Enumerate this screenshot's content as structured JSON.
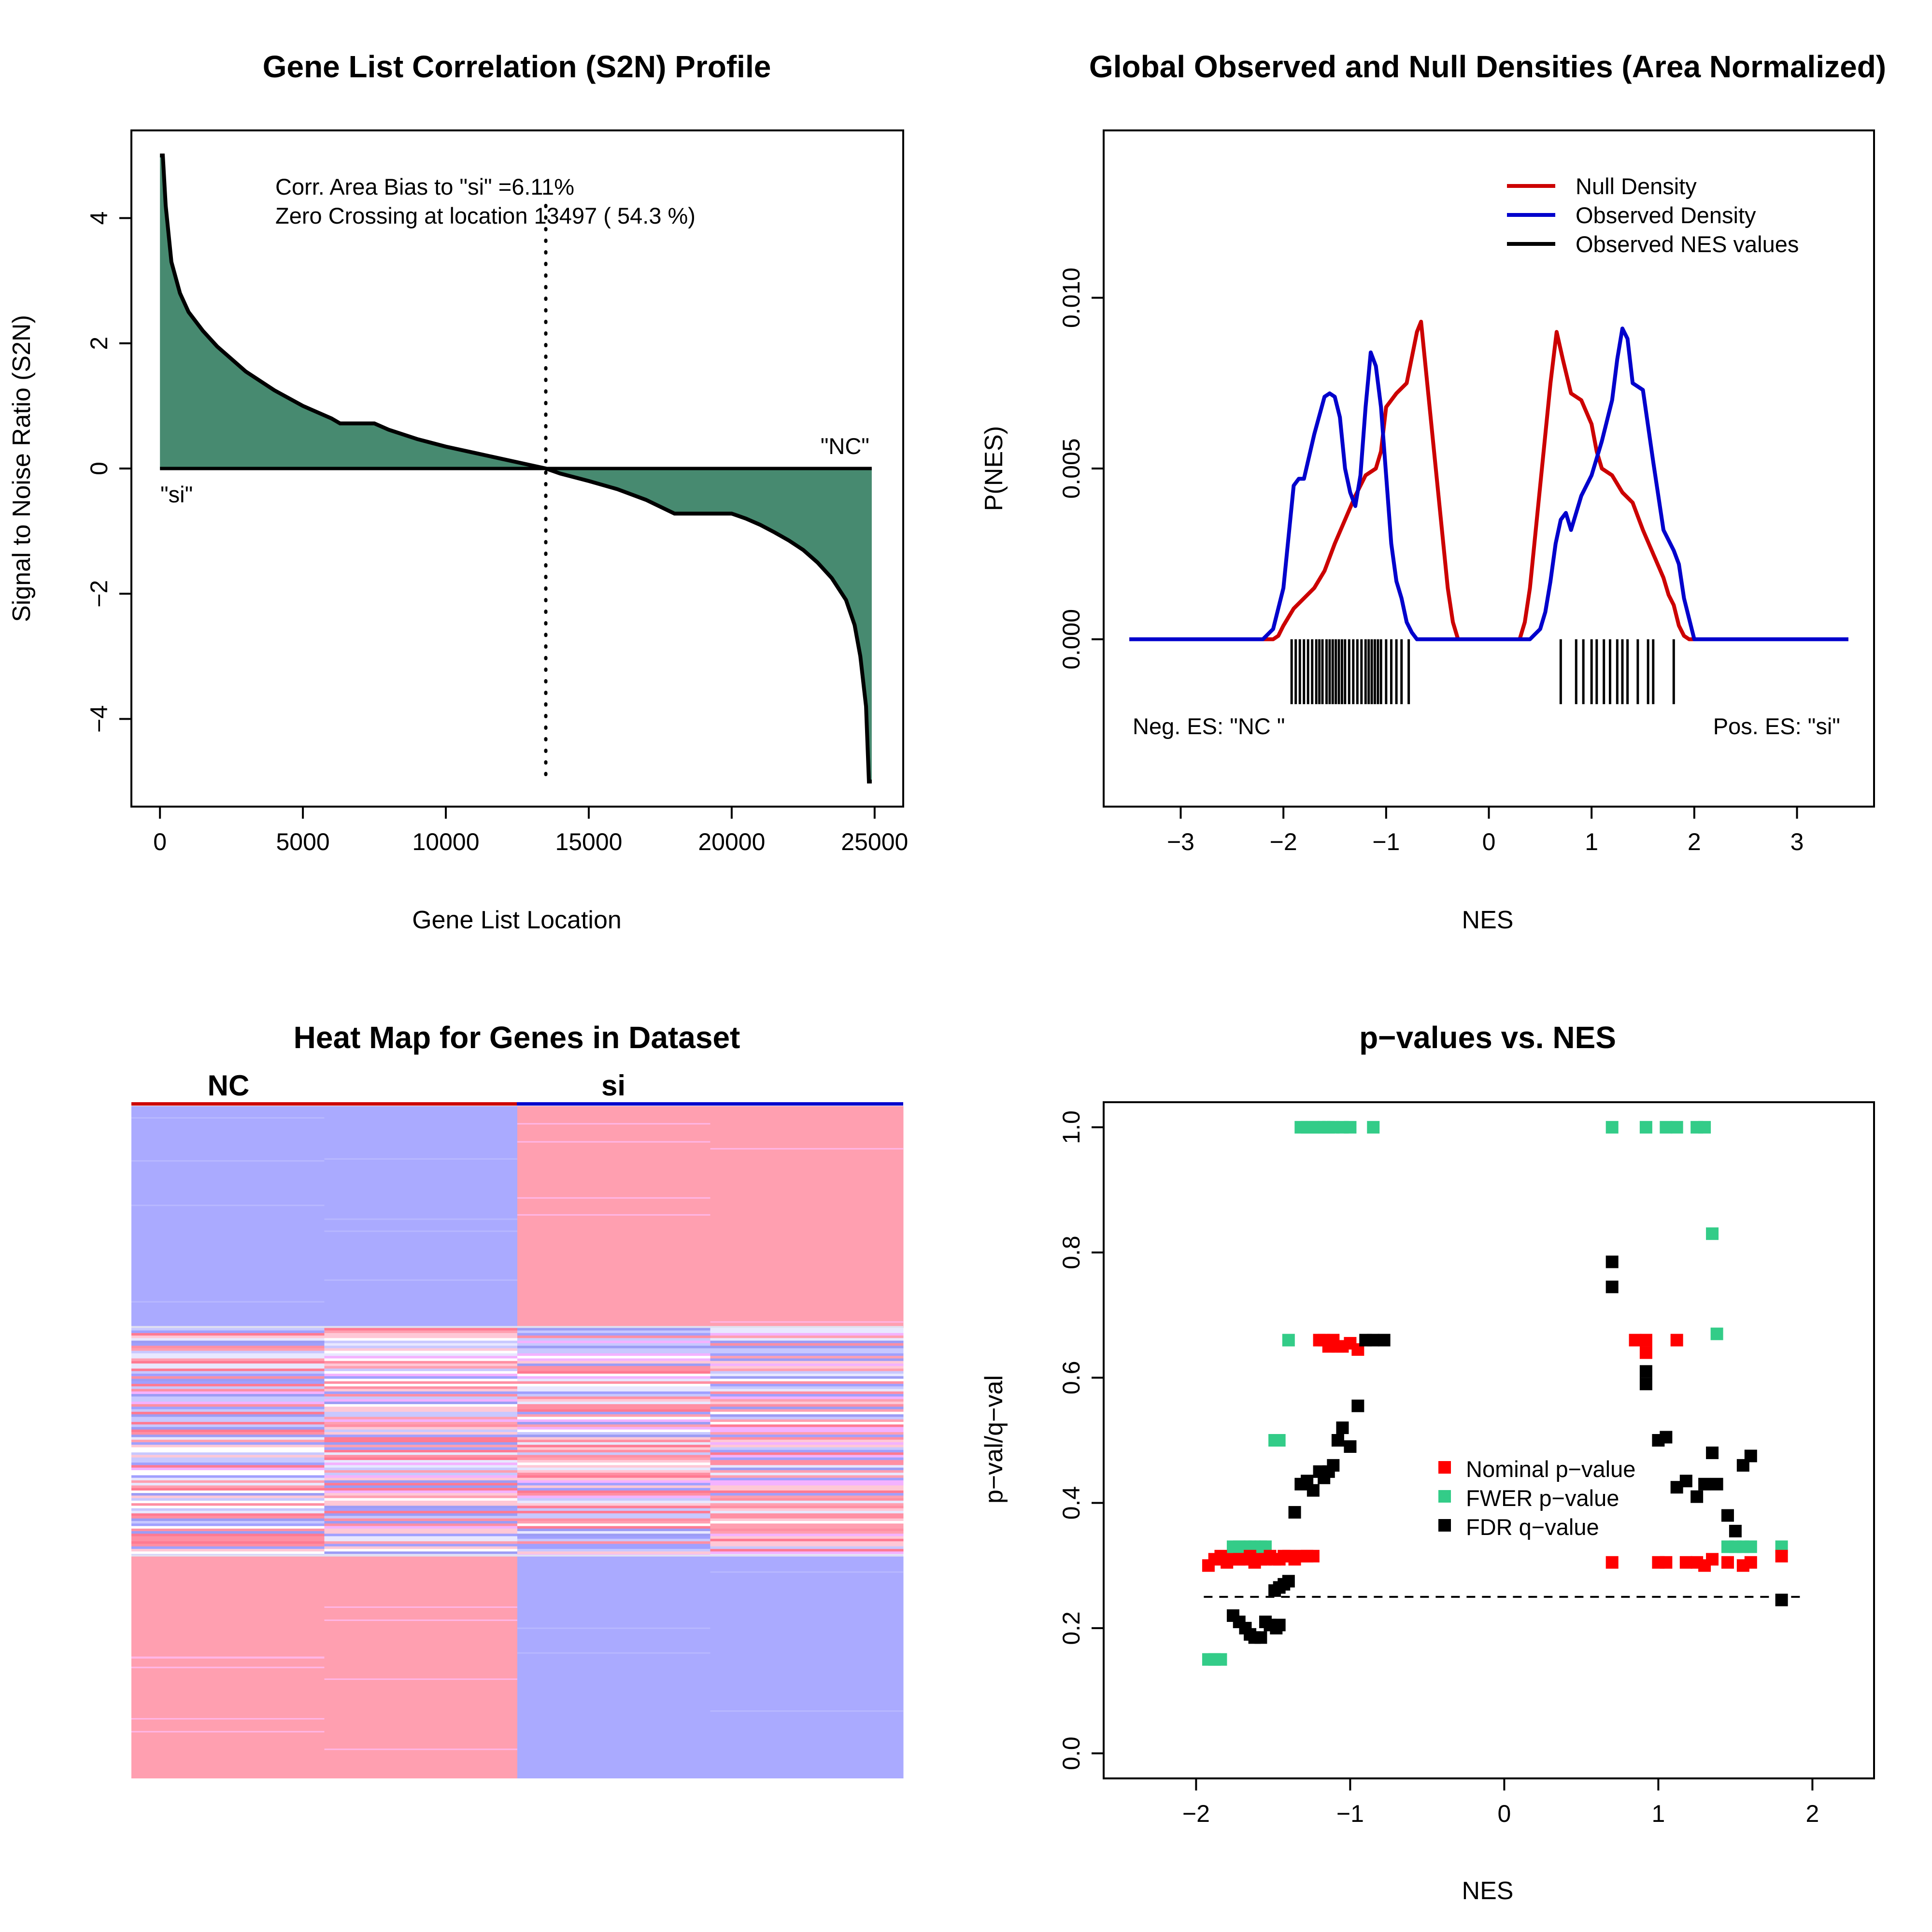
{
  "panels": {
    "s2n": {
      "title": "Gene List Correlation (S2N) Profile",
      "xlabel": "Gene List Location",
      "ylabel": "Signal to Noise Ratio (S2N)",
      "annotation_1": "Corr. Area Bias to \"si\" =6.11%",
      "annotation_2": "Zero Crossing at location  13497  ( 54.3  %)",
      "label_left": "\"si\"",
      "label_right": "\"NC\"",
      "fill_color": "#478a70"
    },
    "density": {
      "title": "Global Observed and Null Densities (Area Normalized)",
      "xlabel": "NES",
      "ylabel": "P(NES)",
      "legend": [
        "Null Density",
        "Observed Density",
        "Observed NES values"
      ],
      "neg_label": "Neg. ES: \"NC \"",
      "pos_label": "Pos. ES: \"si\"",
      "colors": {
        "null": "#cc0000",
        "observed": "#0000cc",
        "values": "#000000"
      }
    },
    "heatmap": {
      "title": "Heat Map for Genes in Dataset",
      "group_nc": "NC",
      "group_si": "si",
      "colors": {
        "high": "#ff9fb0",
        "low": "#aaaaff",
        "bar_nc": "#cc0000",
        "bar_si": "#0000cc"
      }
    },
    "pvalues": {
      "title": "p−values vs. NES",
      "xlabel": "NES",
      "ylabel": "p−val/q−val",
      "legend": [
        "Nominal p−value",
        "FWER p−value",
        "FDR q−value"
      ],
      "colors": {
        "nominal": "#ff0000",
        "fwer": "#33cc88",
        "fdr": "#000000"
      }
    }
  },
  "chart_data": [
    {
      "type": "area",
      "title": "Gene List Correlation (S2N) Profile",
      "xlabel": "Gene List Location",
      "ylabel": "Signal to Noise Ratio (S2N)",
      "xlim": [
        -1000,
        26000
      ],
      "ylim": [
        -5.4,
        5.4
      ],
      "xticks": [
        0,
        5000,
        10000,
        15000,
        20000,
        25000
      ],
      "yticks": [
        -4,
        -2,
        0,
        2,
        4
      ],
      "zero_crossing": 13497,
      "x": [
        0,
        100,
        200,
        400,
        700,
        1000,
        1500,
        2000,
        3000,
        4000,
        5000,
        6000,
        6300,
        7500,
        8000,
        9000,
        10000,
        11000,
        12000,
        13000,
        13497,
        14000,
        15000,
        16000,
        17000,
        18000,
        19000,
        20000,
        20500,
        21000,
        21500,
        22000,
        22500,
        23000,
        23500,
        24000,
        24300,
        24500,
        24700,
        24800,
        24900
      ],
      "y": [
        5.0,
        5.0,
        4.2,
        3.3,
        2.8,
        2.5,
        2.2,
        1.95,
        1.55,
        1.25,
        1.0,
        0.8,
        0.72,
        0.72,
        0.62,
        0.47,
        0.35,
        0.25,
        0.15,
        0.05,
        0.0,
        -0.08,
        -0.2,
        -0.33,
        -0.5,
        -0.72,
        -0.72,
        -0.72,
        -0.8,
        -0.9,
        -1.02,
        -1.15,
        -1.3,
        -1.5,
        -1.75,
        -2.1,
        -2.5,
        -3.0,
        -3.8,
        -5.0,
        -5.0
      ]
    },
    {
      "type": "line",
      "title": "Global Observed and Null Densities (Area Normalized)",
      "xlabel": "NES",
      "ylabel": "P(NES)",
      "xlim": [
        -3.75,
        3.75
      ],
      "ylim": [
        -0.0049,
        0.0149
      ],
      "xticks": [
        -3,
        -2,
        -1,
        0,
        1,
        2,
        3
      ],
      "yticks": [
        0.0,
        0.005,
        0.01
      ],
      "ytick_labels": [
        "0.000",
        "0.005",
        "0.010"
      ],
      "legend_position": "top-right",
      "series": [
        {
          "name": "Null Density",
          "x": [
            -3.5,
            -2.1,
            -2.05,
            -2.0,
            -1.9,
            -1.8,
            -1.7,
            -1.6,
            -1.5,
            -1.4,
            -1.3,
            -1.2,
            -1.1,
            -1.05,
            -1.0,
            -0.9,
            -0.8,
            -0.7,
            -0.66,
            -0.6,
            -0.5,
            -0.4,
            -0.35,
            -0.3,
            0.3,
            0.35,
            0.4,
            0.5,
            0.6,
            0.66,
            0.72,
            0.8,
            0.9,
            1.0,
            1.05,
            1.1,
            1.2,
            1.3,
            1.4,
            1.5,
            1.6,
            1.7,
            1.75,
            1.8,
            1.85,
            1.9,
            1.95,
            3.5
          ],
          "y": [
            0.0,
            0.0,
            0.0001,
            0.0004,
            0.0009,
            0.0012,
            0.0015,
            0.002,
            0.0028,
            0.0035,
            0.0042,
            0.0048,
            0.005,
            0.0055,
            0.0068,
            0.0072,
            0.0075,
            0.009,
            0.0093,
            0.0075,
            0.0045,
            0.0015,
            0.0005,
            0.0,
            0.0,
            0.0005,
            0.0015,
            0.0045,
            0.0075,
            0.009,
            0.0082,
            0.0072,
            0.007,
            0.0063,
            0.0055,
            0.005,
            0.0048,
            0.0043,
            0.004,
            0.0032,
            0.0025,
            0.0018,
            0.0013,
            0.001,
            0.0004,
            0.0001,
            0.0,
            0.0
          ]
        },
        {
          "name": "Observed Density",
          "x": [
            -3.5,
            -2.2,
            -2.1,
            -2.0,
            -1.95,
            -1.9,
            -1.85,
            -1.8,
            -1.7,
            -1.6,
            -1.55,
            -1.5,
            -1.45,
            -1.4,
            -1.35,
            -1.3,
            -1.25,
            -1.2,
            -1.15,
            -1.1,
            -1.05,
            -1.0,
            -0.95,
            -0.9,
            -0.85,
            -0.8,
            -0.75,
            -0.7,
            -0.6,
            0.4,
            0.5,
            0.55,
            0.6,
            0.65,
            0.7,
            0.75,
            0.8,
            0.85,
            0.9,
            1.0,
            1.1,
            1.2,
            1.25,
            1.3,
            1.35,
            1.4,
            1.5,
            1.6,
            1.7,
            1.8,
            1.85,
            1.9,
            2.0,
            3.5
          ],
          "y": [
            0.0,
            0.0,
            0.0003,
            0.0015,
            0.003,
            0.0045,
            0.0047,
            0.0047,
            0.006,
            0.0071,
            0.0072,
            0.0071,
            0.0065,
            0.005,
            0.0043,
            0.0039,
            0.0048,
            0.0068,
            0.0084,
            0.008,
            0.0068,
            0.0048,
            0.0028,
            0.0017,
            0.0012,
            0.0005,
            0.0002,
            0.0,
            0.0,
            0.0,
            0.0003,
            0.0008,
            0.0017,
            0.0028,
            0.0035,
            0.0037,
            0.0032,
            0.0037,
            0.0042,
            0.0048,
            0.0058,
            0.007,
            0.0082,
            0.0091,
            0.0088,
            0.0075,
            0.0073,
            0.0052,
            0.0032,
            0.0026,
            0.0022,
            0.0012,
            0.0,
            0.0
          ]
        }
      ],
      "observed_nes_values": [
        -1.92,
        -1.88,
        -1.84,
        -1.8,
        -1.76,
        -1.72,
        -1.68,
        -1.65,
        -1.62,
        -1.58,
        -1.55,
        -1.52,
        -1.49,
        -1.46,
        -1.43,
        -1.4,
        -1.36,
        -1.32,
        -1.28,
        -1.24,
        -1.2,
        -1.17,
        -1.14,
        -1.11,
        -1.08,
        -1.05,
        -1.0,
        -0.95,
        -0.9,
        -0.85,
        -0.78,
        0.7,
        0.85,
        0.92,
        1.0,
        1.05,
        1.12,
        1.18,
        1.25,
        1.3,
        1.35,
        1.45,
        1.55,
        1.6,
        1.8
      ]
    },
    {
      "type": "heatmap",
      "title": "Heat Map for Genes in Dataset",
      "columns": [
        "NC",
        "NC",
        "si",
        "si"
      ],
      "blocks": [
        {
          "fraction": 0.33,
          "pattern": [
            "low",
            "low",
            "high",
            "high"
          ]
        },
        {
          "fraction": 0.34,
          "pattern": [
            "mixed",
            "mixed",
            "mixed",
            "mixed"
          ]
        },
        {
          "fraction": 0.33,
          "pattern": [
            "high",
            "high",
            "low",
            "low"
          ]
        }
      ]
    },
    {
      "type": "scatter",
      "title": "p−values vs. NES",
      "xlabel": "NES",
      "ylabel": "p−val/q−val",
      "xlim": [
        -2.6,
        2.4
      ],
      "ylim": [
        -0.04,
        1.04
      ],
      "xticks": [
        -2,
        -1,
        0,
        1,
        2
      ],
      "yticks": [
        0.0,
        0.2,
        0.4,
        0.6,
        0.8,
        1.0
      ],
      "ytick_labels": [
        "0.0",
        "0.2",
        "0.4",
        "0.6",
        "0.8",
        "1.0"
      ],
      "threshold": 0.25,
      "threshold_range": [
        -1.95,
        1.95
      ],
      "series": [
        {
          "name": "Nominal p−value",
          "x": [
            -1.92,
            -1.88,
            -1.84,
            -1.8,
            -1.76,
            -1.72,
            -1.68,
            -1.65,
            -1.62,
            -1.58,
            -1.55,
            -1.52,
            -1.49,
            -1.46,
            -1.43,
            -1.4,
            -1.36,
            -1.32,
            -1.2,
            -1.17,
            -1.14,
            -1.11,
            -1.08,
            -1.05,
            -1.0,
            -0.95,
            -1.28,
            -1.24,
            0.7,
            0.85,
            0.92,
            0.92,
            1.0,
            1.05,
            1.12,
            1.18,
            1.25,
            1.3,
            1.35,
            1.45,
            1.55,
            1.6,
            1.8
          ],
          "y": [
            0.3,
            0.31,
            0.315,
            0.305,
            0.31,
            0.31,
            0.31,
            0.315,
            0.305,
            0.31,
            0.31,
            0.315,
            0.31,
            0.31,
            0.315,
            0.315,
            0.31,
            0.315,
            0.66,
            0.66,
            0.65,
            0.66,
            0.65,
            0.65,
            0.655,
            0.645,
            0.315,
            0.315,
            0.305,
            0.66,
            0.64,
            0.66,
            0.305,
            0.305,
            0.66,
            0.305,
            0.305,
            0.3,
            0.31,
            0.305,
            0.3,
            0.305,
            0.315
          ]
        },
        {
          "name": "FWER p−value",
          "x": [
            -1.92,
            -1.88,
            -1.84,
            -1.76,
            -1.72,
            -1.68,
            -1.65,
            -1.62,
            -1.58,
            -1.55,
            -1.49,
            -1.46,
            -1.4,
            -1.32,
            -1.28,
            -1.24,
            -1.2,
            -1.17,
            -1.14,
            -1.11,
            -1.05,
            -1.0,
            -0.85,
            0.7,
            0.92,
            1.05,
            1.12,
            1.25,
            1.3,
            1.35,
            1.38,
            1.45,
            1.5,
            1.55,
            1.6,
            1.8
          ],
          "y": [
            0.15,
            0.15,
            0.15,
            0.33,
            0.33,
            0.33,
            0.33,
            0.33,
            0.33,
            0.33,
            0.5,
            0.5,
            0.66,
            1.0,
            1.0,
            1.0,
            1.0,
            1.0,
            1.0,
            1.0,
            1.0,
            1.0,
            1.0,
            1.0,
            1.0,
            1.0,
            1.0,
            1.0,
            1.0,
            0.83,
            0.67,
            0.33,
            0.33,
            0.33,
            0.33,
            0.33
          ]
        },
        {
          "name": "FDR q−value",
          "x": [
            -1.76,
            -1.72,
            -1.68,
            -1.65,
            -1.62,
            -1.58,
            -1.55,
            -1.52,
            -1.49,
            -1.46,
            -1.43,
            -1.4,
            -1.36,
            -1.32,
            -1.28,
            -1.24,
            -1.2,
            -1.17,
            -1.14,
            -1.11,
            -1.08,
            -1.05,
            -1.0,
            -0.95,
            -0.9,
            -0.85,
            -0.78,
            0.7,
            0.7,
            0.92,
            0.92,
            1.0,
            1.05,
            1.12,
            1.18,
            1.25,
            1.3,
            1.35,
            1.38,
            1.45,
            1.5,
            1.55,
            1.6,
            1.8,
            -1.48,
            -1.46
          ],
          "y": [
            0.22,
            0.21,
            0.2,
            0.19,
            0.185,
            0.185,
            0.21,
            0.205,
            0.26,
            0.265,
            0.27,
            0.275,
            0.385,
            0.43,
            0.435,
            0.42,
            0.45,
            0.44,
            0.45,
            0.46,
            0.5,
            0.52,
            0.49,
            0.555,
            0.66,
            0.66,
            0.66,
            0.785,
            0.745,
            0.61,
            0.59,
            0.5,
            0.505,
            0.425,
            0.435,
            0.41,
            0.43,
            0.48,
            0.43,
            0.38,
            0.355,
            0.46,
            0.475,
            0.245,
            0.2,
            0.205
          ]
        }
      ]
    }
  ]
}
